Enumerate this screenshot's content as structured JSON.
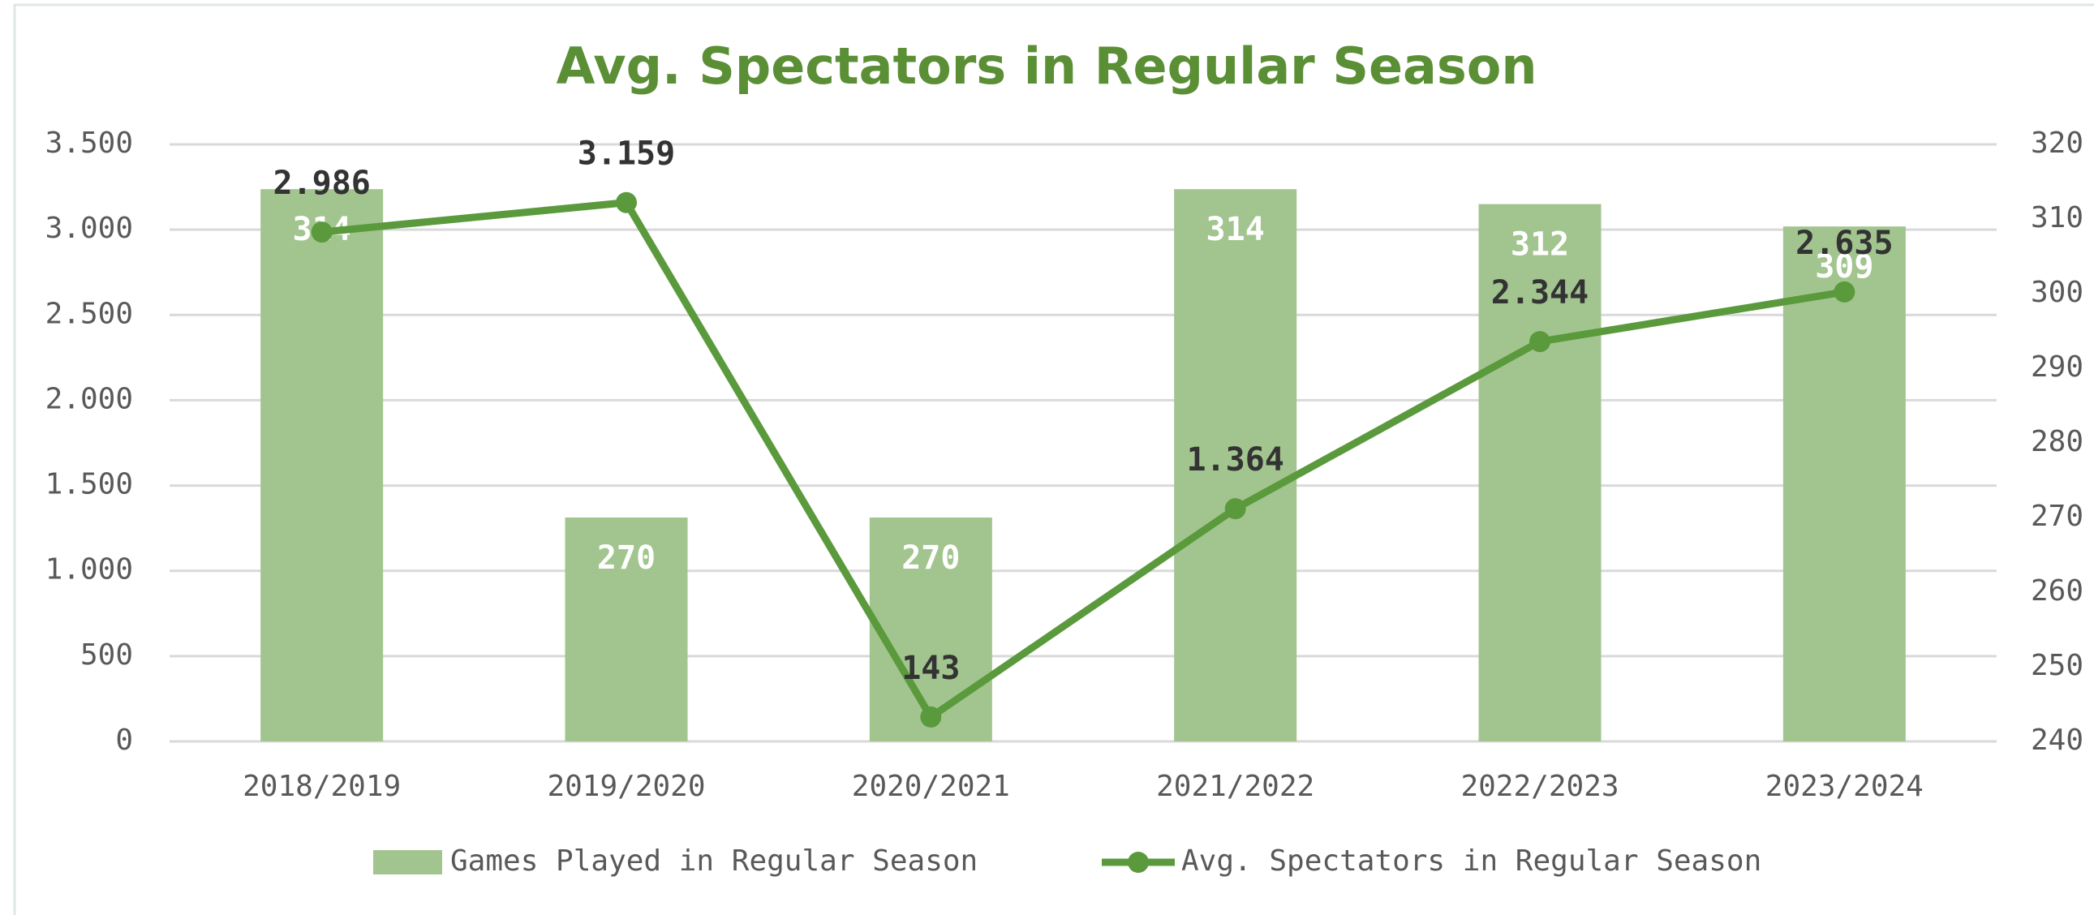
{
  "chart_data": {
    "type": "bar-line",
    "title": "Avg. Spectators in Regular Season",
    "categories": [
      "2018/2019",
      "2019/2020",
      "2020/2021",
      "2021/2022",
      "2022/2023",
      "2023/2024"
    ],
    "series": [
      {
        "name": "Games Played in Regular Season",
        "type": "bar",
        "axis": "y2",
        "color": "#a2c58f",
        "values": [
          314,
          270,
          270,
          314,
          312,
          309
        ]
      },
      {
        "name": "Avg. Spectators in Regular Season",
        "type": "line",
        "axis": "y",
        "color": "#5a9a3c",
        "values": [
          2986,
          3159,
          143,
          1364,
          2344,
          2635
        ],
        "value_labels": [
          "2.986",
          "3.159",
          "143",
          "1.364",
          "2.344",
          "2.635"
        ]
      }
    ],
    "ylim": [
      0,
      3500
    ],
    "yticks": [
      0,
      500,
      {
        "value": 1000,
        "label": "1.000"
      },
      {
        "value": 1500,
        "label": "1.500"
      },
      {
        "value": 2000,
        "label": "2.000"
      },
      {
        "value": 2500,
        "label": "2.500"
      },
      {
        "value": 3000,
        "label": "3.000"
      },
      {
        "value": 3500,
        "label": "3.500"
      }
    ],
    "y2lim": [
      240,
      320
    ],
    "y2ticks": [
      240,
      250,
      260,
      270,
      280,
      290,
      300,
      310,
      320
    ],
    "grid": true,
    "legend": "bottom"
  }
}
